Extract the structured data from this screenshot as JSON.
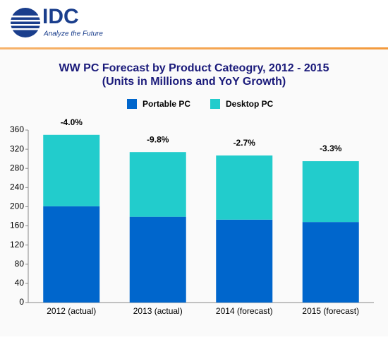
{
  "header": {
    "brand": "IDC",
    "tagline": "Analyze the Future"
  },
  "chart_data": {
    "type": "stacked_bar",
    "title": "WW PC Forecast by Product Cateogry, 2012 - 2015",
    "subtitle": "(Units in Millions and YoY Growth)",
    "categories": [
      "2012 (actual)",
      "2013 (actual)",
      "2014 (forecast)",
      "2015 (forecast)"
    ],
    "series": [
      {
        "name": "Portable PC",
        "color": "#0066cc",
        "values": [
          201,
          179,
          173,
          168
        ]
      },
      {
        "name": "Desktop PC",
        "color": "#22cccc",
        "values": [
          149,
          135,
          134,
          127
        ]
      }
    ],
    "annotations": [
      "-4.0%",
      "-9.8%",
      "-2.7%",
      "-3.3%"
    ],
    "ylim": [
      0,
      360
    ],
    "yticks": [
      0,
      40,
      80,
      120,
      160,
      200,
      240,
      280,
      320,
      360
    ],
    "grid": false,
    "legend": "top"
  }
}
